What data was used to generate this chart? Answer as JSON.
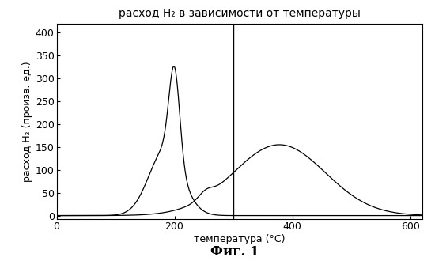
{
  "title": "расход H₂ в зависимости от температуры",
  "xlabel": "температура (°C)",
  "ylabel": "расход H₂ (произв. ед.)",
  "xlim": [
    0,
    620
  ],
  "ylim": [
    -8,
    420
  ],
  "xticks": [
    0,
    200,
    400,
    600
  ],
  "yticks": [
    0,
    50,
    100,
    150,
    200,
    250,
    300,
    350,
    400
  ],
  "vline_x": 300,
  "line_color": "#000000",
  "background_color": "#ffffff",
  "fig_caption": "Фиг. 1",
  "title_fontsize": 10,
  "axis_label_fontsize": 9,
  "tick_fontsize": 9,
  "caption_fontsize": 12,
  "curve1": {
    "broad_base": {
      "mu": 185,
      "sigma": 28,
      "amp": 145
    },
    "sharp_peak": {
      "mu": 200,
      "sigma": 9,
      "amp": 200
    }
  },
  "curve2": {
    "small_bump": {
      "mu": 253,
      "sigma": 12,
      "amp": 14
    },
    "broad_peak": {
      "mu": 378,
      "sigma": 78,
      "amp": 155
    }
  }
}
